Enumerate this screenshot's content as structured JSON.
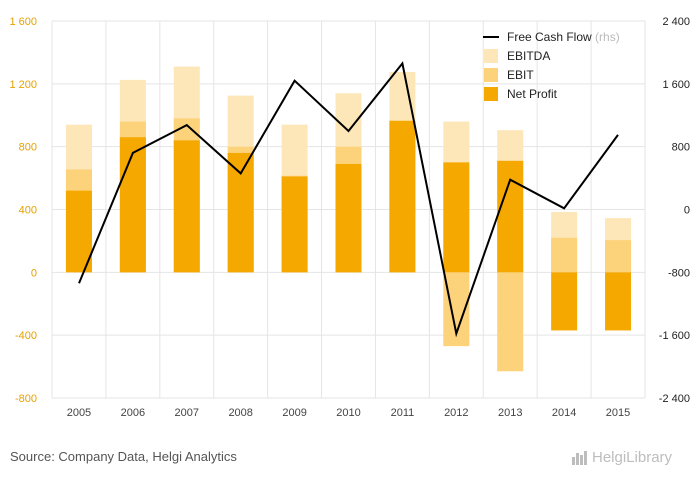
{
  "chart_data": {
    "type": "bar",
    "categories": [
      "2005",
      "2006",
      "2007",
      "2008",
      "2009",
      "2010",
      "2011",
      "2012",
      "2013",
      "2014",
      "2015"
    ],
    "series": [
      {
        "name": "EBITDA",
        "kind": "bar",
        "color": "#fde7b9",
        "values": [
          940,
          1225,
          1310,
          1125,
          940,
          1140,
          1275,
          960,
          905,
          385,
          345
        ]
      },
      {
        "name": "EBIT",
        "kind": "bar",
        "color": "#fcd27a",
        "values": [
          655,
          960,
          980,
          800,
          615,
          800,
          960,
          -470,
          -630,
          220,
          205
        ]
      },
      {
        "name": "Net Profit",
        "kind": "bar",
        "color": "#f5a800",
        "values": [
          520,
          860,
          840,
          760,
          610,
          690,
          965,
          700,
          710,
          -370,
          -370
        ]
      },
      {
        "name": "Free Cash Flow",
        "kind": "line",
        "axis": "right",
        "color": "#000000",
        "values": [
          -940,
          720,
          1075,
          460,
          1640,
          1000,
          1860,
          -1580,
          380,
          15,
          950
        ]
      }
    ],
    "y_left": {
      "ticks": [
        "1 600",
        "1 200",
        "800",
        "400",
        "0",
        "-400",
        "-800"
      ],
      "range": [
        -800,
        1600
      ]
    },
    "y_right": {
      "ticks": [
        "2 400",
        "1 600",
        "800",
        "0",
        "-800",
        "-1 600",
        "-2 400"
      ],
      "range": [
        -2400,
        2400
      ]
    },
    "legend": {
      "position": "top-right",
      "items": [
        {
          "label": "Free Cash Flow",
          "suffix": "(rhs)",
          "marker": "line",
          "color": "#000000"
        },
        {
          "label": "EBITDA",
          "marker": "box",
          "color": "#fde7b9"
        },
        {
          "label": "EBIT",
          "marker": "box",
          "color": "#fcd27a"
        },
        {
          "label": "Net Profit",
          "marker": "box",
          "color": "#f5a800"
        }
      ]
    },
    "grid": true
  },
  "footer": {
    "source": "Source: Company Data, Helgi Analytics",
    "brand": "HelgiLibrary"
  }
}
